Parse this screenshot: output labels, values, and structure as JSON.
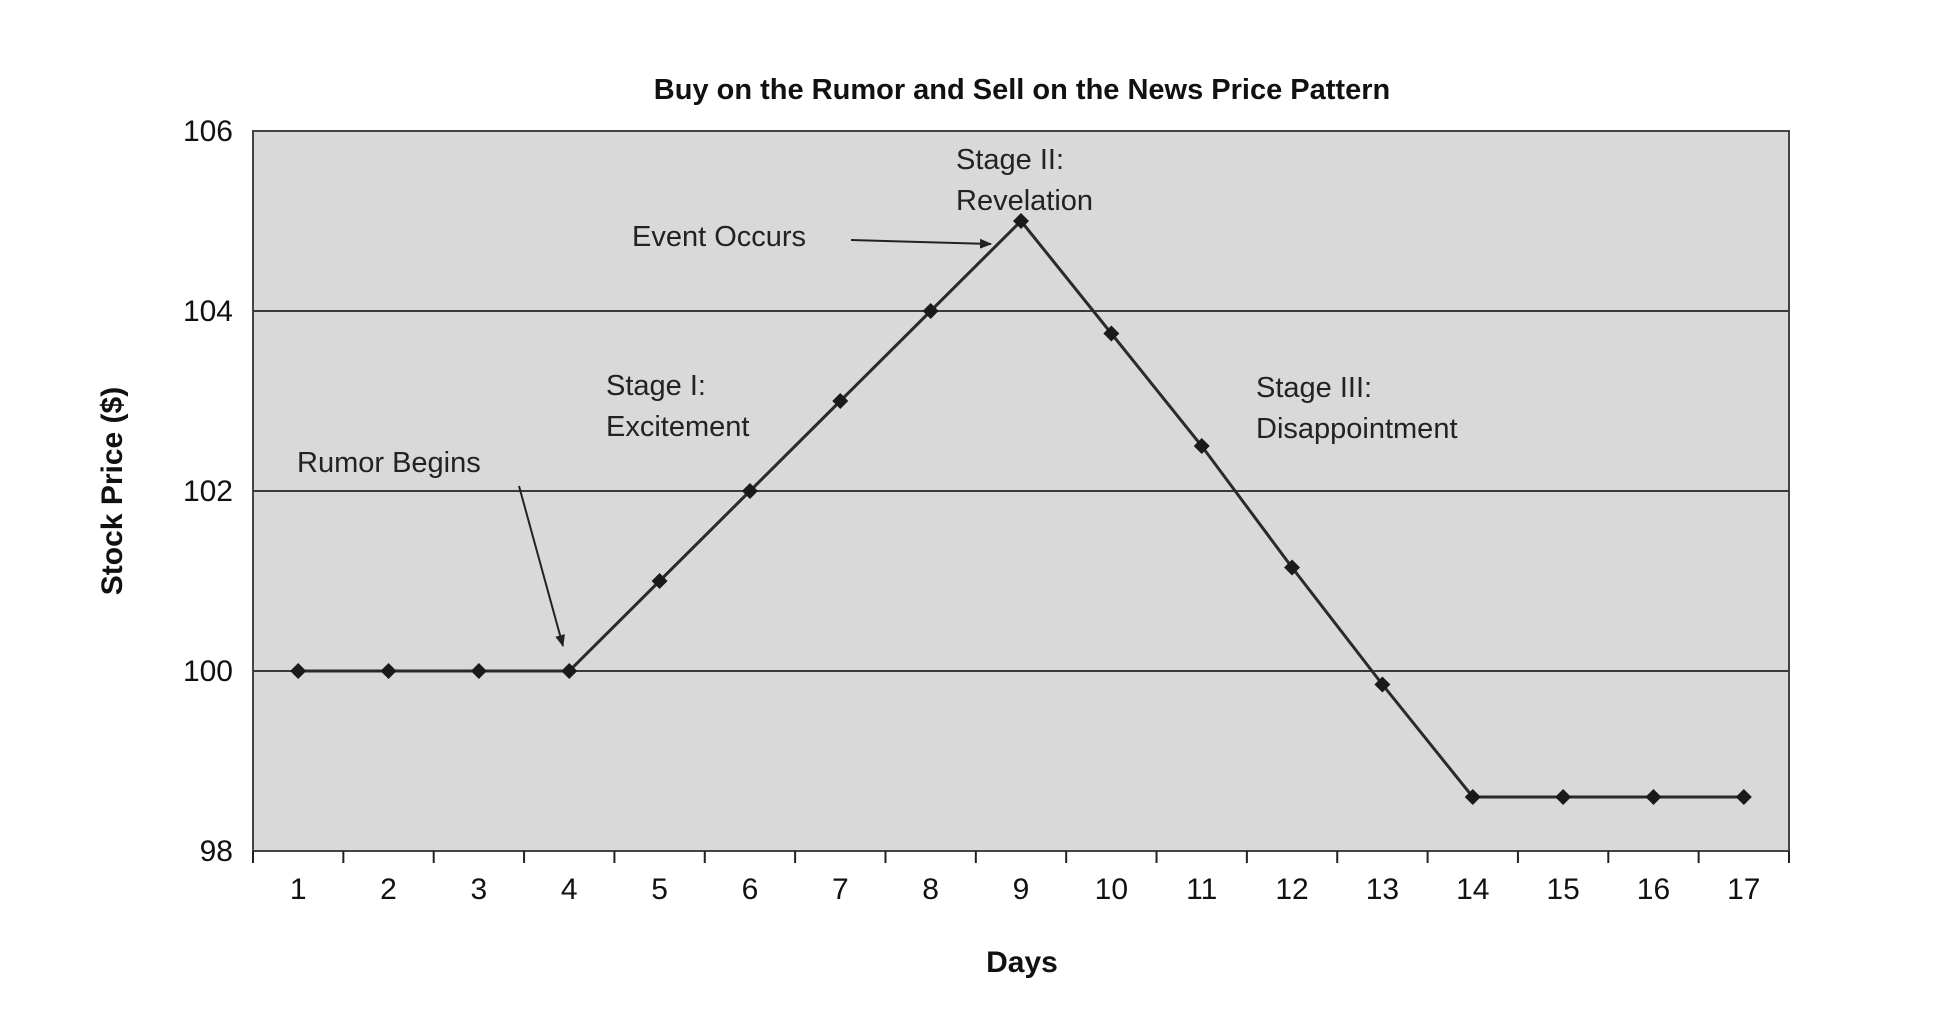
{
  "chart_data": {
    "type": "line",
    "title": "Buy on the Rumor and Sell on the News Price Pattern",
    "xlabel": "Days",
    "ylabel": "Stock Price ($)",
    "ylim": [
      98,
      106
    ],
    "y_ticks": [
      98,
      100,
      102,
      104,
      106
    ],
    "grid": "horizontal",
    "colors": {
      "plot_bg": "#d9d9d9",
      "line": "#2a2a2a",
      "grid": "#3a3a3a"
    },
    "x": [
      1,
      2,
      3,
      4,
      5,
      6,
      7,
      8,
      9,
      10,
      11,
      12,
      13,
      14,
      15,
      16,
      17
    ],
    "series": [
      {
        "values": [
          100,
          100,
          100,
          100,
          101,
          102,
          103,
          104,
          105,
          103.75,
          102.5,
          101.15,
          99.85,
          98.6,
          98.6,
          98.6,
          98.6
        ]
      }
    ],
    "annotations": [
      {
        "id": "rumor",
        "lines": [
          "Rumor Begins"
        ],
        "target_day": 4,
        "target_price": 100
      },
      {
        "id": "stage1",
        "lines": [
          "Stage I:",
          "Excitement"
        ]
      },
      {
        "id": "event",
        "lines": [
          "Event Occurs"
        ],
        "target_day": 9,
        "target_price": 105
      },
      {
        "id": "stage2",
        "lines": [
          "Stage II:",
          "Revelation"
        ]
      },
      {
        "id": "stage3",
        "lines": [
          "Stage III:",
          "Disappointment"
        ]
      }
    ]
  }
}
